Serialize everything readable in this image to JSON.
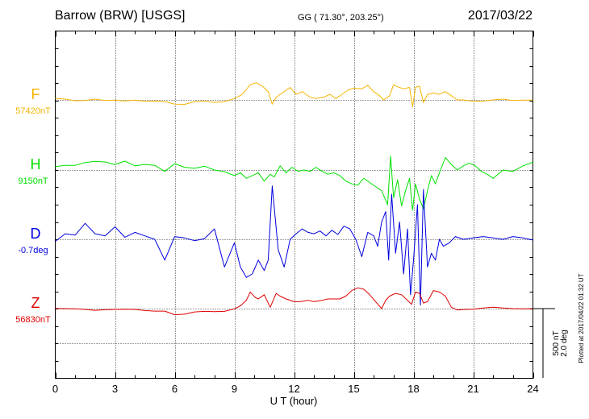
{
  "header": {
    "station": "Barrow (BRW)  [USGS]",
    "coords": "GG ( 71.30°, 203.25°)",
    "date": "2017/03/22"
  },
  "plot_note": "Plotted at 2017/04/22 01:32 UT",
  "scale": {
    "line1": "500 nT",
    "line2": "2.0 deg"
  },
  "chart_data": {
    "type": "line",
    "title": "Barrow (BRW)  [USGS]",
    "xlabel": "U T (hour)",
    "xlim": [
      0,
      24
    ],
    "xticks": [
      0,
      3,
      6,
      9,
      12,
      15,
      18,
      21,
      24
    ],
    "grid": true,
    "series": [
      {
        "name": "F",
        "baseline_label": "57420nT",
        "color": "#f5b400",
        "units": "nT",
        "points": [
          [
            0,
            11
          ],
          [
            0.5,
            6
          ],
          [
            1,
            -6
          ],
          [
            1.5,
            -4
          ],
          [
            2,
            6
          ],
          [
            2.5,
            -4
          ],
          [
            3,
            -2
          ],
          [
            3.5,
            -8
          ],
          [
            4,
            -2
          ],
          [
            4.5,
            -10
          ],
          [
            5,
            -8
          ],
          [
            5.5,
            -12
          ],
          [
            6,
            -30
          ],
          [
            6.5,
            -32
          ],
          [
            7,
            -12
          ],
          [
            7.5,
            -8
          ],
          [
            8,
            -18
          ],
          [
            8.5,
            -12
          ],
          [
            9,
            10
          ],
          [
            9.4,
            40
          ],
          [
            9.8,
            110
          ],
          [
            10.1,
            124
          ],
          [
            10.4,
            100
          ],
          [
            10.7,
            60
          ],
          [
            10.9,
            -30
          ],
          [
            11.1,
            20
          ],
          [
            11.4,
            50
          ],
          [
            11.8,
            90
          ],
          [
            12.1,
            40
          ],
          [
            12.4,
            60
          ],
          [
            12.8,
            20
          ],
          [
            13.1,
            10
          ],
          [
            13.5,
            20
          ],
          [
            13.8,
            40
          ],
          [
            14.1,
            10
          ],
          [
            14.4,
            40
          ],
          [
            14.7,
            70
          ],
          [
            15,
            85
          ],
          [
            15.4,
            80
          ],
          [
            15.7,
            105
          ],
          [
            16,
            60
          ],
          [
            16.3,
            30
          ],
          [
            16.5,
            0
          ],
          [
            16.8,
            30
          ],
          [
            17,
            110
          ],
          [
            17.2,
            95
          ],
          [
            17.5,
            80
          ],
          [
            17.8,
            90
          ],
          [
            17.95,
            -50
          ],
          [
            18.1,
            90
          ],
          [
            18.3,
            100
          ],
          [
            18.5,
            -20
          ],
          [
            18.7,
            40
          ],
          [
            19,
            50
          ],
          [
            19.3,
            40
          ],
          [
            19.6,
            60
          ],
          [
            19.9,
            30
          ],
          [
            20.2,
            0
          ],
          [
            20.5,
            0
          ],
          [
            21,
            -10
          ],
          [
            21.5,
            -8
          ],
          [
            22,
            0
          ],
          [
            22.5,
            6
          ],
          [
            23,
            -4
          ],
          [
            23.5,
            -2
          ],
          [
            24,
            -2
          ]
        ]
      },
      {
        "name": "H",
        "baseline_label": "9150nT",
        "color": "#00e000",
        "units": "nT",
        "points": [
          [
            0,
            25
          ],
          [
            0.5,
            34
          ],
          [
            1,
            34
          ],
          [
            1.5,
            54
          ],
          [
            2,
            62
          ],
          [
            2.5,
            58
          ],
          [
            3,
            40
          ],
          [
            3.5,
            64
          ],
          [
            4,
            30
          ],
          [
            4.5,
            40
          ],
          [
            5,
            34
          ],
          [
            5.5,
            -10
          ],
          [
            6,
            46
          ],
          [
            6.5,
            20
          ],
          [
            7,
            12
          ],
          [
            7.5,
            28
          ],
          [
            8,
            0
          ],
          [
            8.5,
            -12
          ],
          [
            9,
            -40
          ],
          [
            9.3,
            -20
          ],
          [
            9.6,
            -60
          ],
          [
            9.9,
            -40
          ],
          [
            10.2,
            -20
          ],
          [
            10.5,
            -80
          ],
          [
            10.8,
            -30
          ],
          [
            11,
            -50
          ],
          [
            11.3,
            30
          ],
          [
            11.6,
            -20
          ],
          [
            11.9,
            20
          ],
          [
            12.2,
            -10
          ],
          [
            12.5,
            0
          ],
          [
            12.8,
            -10
          ],
          [
            13.1,
            20
          ],
          [
            13.4,
            -10
          ],
          [
            13.7,
            -30
          ],
          [
            14,
            -20
          ],
          [
            14.3,
            -40
          ],
          [
            14.6,
            -80
          ],
          [
            14.9,
            -100
          ],
          [
            15.2,
            -110
          ],
          [
            15.5,
            -60
          ],
          [
            15.8,
            -90
          ],
          [
            16.1,
            -120
          ],
          [
            16.4,
            -150
          ],
          [
            16.7,
            -250
          ],
          [
            16.85,
            100
          ],
          [
            17,
            -200
          ],
          [
            17.2,
            -70
          ],
          [
            17.4,
            -260
          ],
          [
            17.6,
            -150
          ],
          [
            17.8,
            -60
          ],
          [
            17.95,
            -290
          ],
          [
            18.1,
            -100
          ],
          [
            18.3,
            -210
          ],
          [
            18.5,
            -280
          ],
          [
            18.7,
            -150
          ],
          [
            18.9,
            -40
          ],
          [
            19.1,
            -100
          ],
          [
            19.3,
            -20
          ],
          [
            19.6,
            90
          ],
          [
            19.9,
            40
          ],
          [
            20.2,
            0
          ],
          [
            20.5,
            30
          ],
          [
            20.8,
            50
          ],
          [
            21.1,
            30
          ],
          [
            21.4,
            -10
          ],
          [
            21.7,
            -30
          ],
          [
            22,
            -60
          ],
          [
            22.5,
            0
          ],
          [
            23,
            -10
          ],
          [
            23.5,
            30
          ],
          [
            24,
            56
          ]
        ]
      },
      {
        "name": "D",
        "baseline_label": "-0.7deg",
        "color": "#0000e0",
        "units": "deg",
        "points": [
          [
            0,
            -0.06
          ],
          [
            0.5,
            0.16
          ],
          [
            1,
            0.12
          ],
          [
            1.5,
            0.46
          ],
          [
            2,
            0.16
          ],
          [
            2.5,
            0.1
          ],
          [
            3,
            0.36
          ],
          [
            3.5,
            0.06
          ],
          [
            4,
            0.2
          ],
          [
            4.5,
            0.1
          ],
          [
            5,
            0.0
          ],
          [
            5.5,
            -0.6
          ],
          [
            6,
            0.08
          ],
          [
            6.5,
            0.04
          ],
          [
            7,
            -0.04
          ],
          [
            7.5,
            0.02
          ],
          [
            8,
            0.3
          ],
          [
            8.5,
            -0.8
          ],
          [
            9,
            -0.1
          ],
          [
            9.3,
            -0.8
          ],
          [
            9.6,
            -1.1
          ],
          [
            9.9,
            -1.0
          ],
          [
            10.2,
            -0.6
          ],
          [
            10.5,
            -0.9
          ],
          [
            10.7,
            -0.6
          ],
          [
            10.9,
            1.54
          ],
          [
            11.2,
            -0.3
          ],
          [
            11.5,
            -0.8
          ],
          [
            11.8,
            0.0
          ],
          [
            12.1,
            0.16
          ],
          [
            12.4,
            0.3
          ],
          [
            12.7,
            0.2
          ],
          [
            13,
            0.16
          ],
          [
            13.3,
            0.24
          ],
          [
            13.6,
            0.1
          ],
          [
            13.9,
            0.26
          ],
          [
            14.2,
            0.14
          ],
          [
            14.5,
            0.38
          ],
          [
            14.8,
            0.3
          ],
          [
            15.1,
            0.0
          ],
          [
            15.4,
            -0.5
          ],
          [
            15.7,
            0.2
          ],
          [
            16,
            0.1
          ],
          [
            16.2,
            -0.2
          ],
          [
            16.4,
            0.5
          ],
          [
            16.6,
            0.8
          ],
          [
            16.75,
            -0.6
          ],
          [
            16.9,
            1.3
          ],
          [
            17.1,
            -0.4
          ],
          [
            17.3,
            0.5
          ],
          [
            17.5,
            -1.0
          ],
          [
            17.7,
            0.3
          ],
          [
            17.85,
            -1.6
          ],
          [
            18,
            -0.6
          ],
          [
            18.2,
            1.0
          ],
          [
            18.35,
            -1.9
          ],
          [
            18.5,
            1.44
          ],
          [
            18.7,
            -0.8
          ],
          [
            18.9,
            -0.4
          ],
          [
            19.1,
            -0.6
          ],
          [
            19.3,
            0.0
          ],
          [
            19.5,
            -0.2
          ],
          [
            19.8,
            -0.1
          ],
          [
            20.1,
            0.08
          ],
          [
            20.5,
            0.0
          ],
          [
            21,
            0.04
          ],
          [
            21.5,
            0.08
          ],
          [
            22,
            0.04
          ],
          [
            22.5,
            0.0
          ],
          [
            23,
            0.08
          ],
          [
            23.5,
            0.04
          ],
          [
            24,
            -0.02
          ]
        ]
      },
      {
        "name": "Z",
        "baseline_label": "56830nT",
        "color": "#e00000",
        "units": "nT",
        "points": [
          [
            0,
            2
          ],
          [
            0.5,
            0
          ],
          [
            1,
            -2
          ],
          [
            1.5,
            -6
          ],
          [
            2,
            -12
          ],
          [
            2.5,
            -8
          ],
          [
            3,
            -6
          ],
          [
            3.5,
            -4
          ],
          [
            4,
            -6
          ],
          [
            4.5,
            -14
          ],
          [
            5,
            -18
          ],
          [
            5.5,
            -18
          ],
          [
            6,
            -44
          ],
          [
            6.5,
            -40
          ],
          [
            7,
            -24
          ],
          [
            7.5,
            -20
          ],
          [
            8,
            -22
          ],
          [
            8.5,
            -20
          ],
          [
            9,
            -2
          ],
          [
            9.3,
            20
          ],
          [
            9.6,
            60
          ],
          [
            9.8,
            120
          ],
          [
            10.05,
            80
          ],
          [
            10.2,
            70
          ],
          [
            10.5,
            100
          ],
          [
            10.8,
            10
          ],
          [
            11.1,
            110
          ],
          [
            11.3,
            90
          ],
          [
            11.6,
            70
          ],
          [
            12,
            50
          ],
          [
            12.3,
            50
          ],
          [
            12.7,
            60
          ],
          [
            13,
            50
          ],
          [
            13.4,
            60
          ],
          [
            13.7,
            70
          ],
          [
            14,
            70
          ],
          [
            14.3,
            70
          ],
          [
            14.6,
            90
          ],
          [
            14.9,
            130
          ],
          [
            15.2,
            150
          ],
          [
            15.5,
            140
          ],
          [
            15.8,
            100
          ],
          [
            16.1,
            50
          ],
          [
            16.4,
            0
          ],
          [
            16.6,
            60
          ],
          [
            16.8,
            90
          ],
          [
            17.1,
            110
          ],
          [
            17.4,
            100
          ],
          [
            17.7,
            60
          ],
          [
            17.9,
            30
          ],
          [
            18.1,
            120
          ],
          [
            18.3,
            110
          ],
          [
            18.5,
            40
          ],
          [
            18.7,
            50
          ],
          [
            19,
            130
          ],
          [
            19.3,
            120
          ],
          [
            19.6,
            90
          ],
          [
            19.9,
            10
          ],
          [
            20.2,
            -10
          ],
          [
            20.6,
            -6
          ],
          [
            21,
            -4
          ],
          [
            21.5,
            4
          ],
          [
            22,
            10
          ],
          [
            22.5,
            4
          ],
          [
            23,
            0
          ],
          [
            23.5,
            -2
          ],
          [
            24,
            0
          ]
        ]
      }
    ]
  }
}
